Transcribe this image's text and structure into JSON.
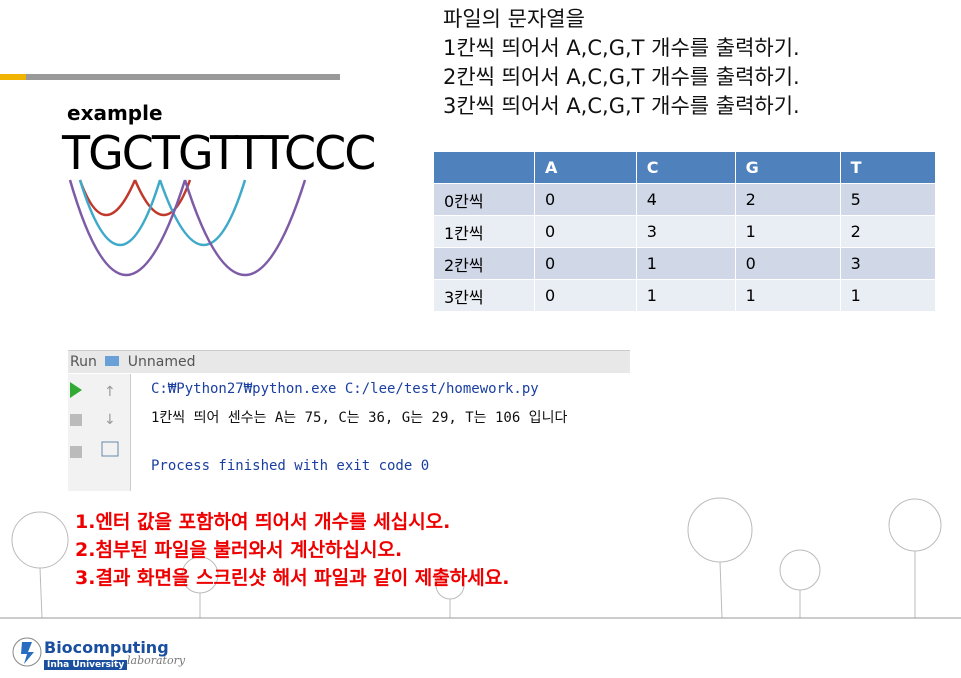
{
  "instructions": [
    "파일의 문자열을",
    "1칸씩 띄어서 A,C,G,T 개수를 출력하기.",
    "2칸씩 띄어서 A,C,G,T 개수를 출력하기.",
    "3칸씩 띄어서 A,C,G,T 개수를 출력하기."
  ],
  "example": {
    "label": "example",
    "sequence": "TGCTGTTTCCC"
  },
  "table": {
    "columns": [
      "A",
      "C",
      "G",
      "T"
    ],
    "rows": [
      [
        "0칸씩",
        0,
        4,
        2,
        5
      ],
      [
        "1칸씩",
        0,
        3,
        1,
        2
      ],
      [
        "2칸씩",
        0,
        1,
        0,
        3
      ],
      [
        "3칸씩",
        0,
        1,
        1,
        1
      ]
    ]
  },
  "console": {
    "tab": "Run",
    "config": "Unnamed",
    "lines": [
      "C:₩Python27₩python.exe C:/lee/test/homework.py",
      "1칸씩 띄어 센수는 A는 75, C는 36, G는 29, T는 106 입니다",
      "Process finished with exit code 0"
    ]
  },
  "tasks": [
    "1.엔터 값을 포함하여 띄어서 개수를 세십시오.",
    "2.첨부된 파일을 불러와서 계산하십시오.",
    "3.결과 화면을 스크린샷 해서 파일과 같이 제출하세요."
  ],
  "logo": {
    "name": "Biocomputing",
    "sub": "laboratory",
    "org": "Inha University"
  }
}
